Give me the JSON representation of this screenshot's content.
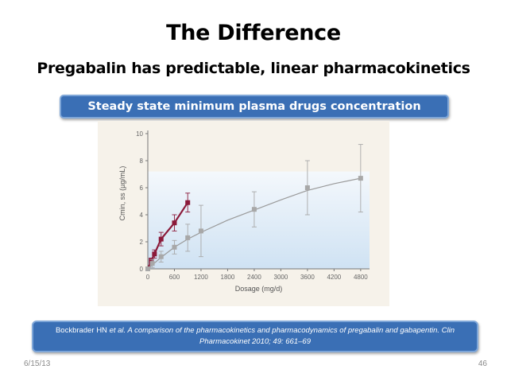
{
  "slide": {
    "title": "The Difference",
    "subtitle": "Pregabalin has predictable, linear pharmacokinetics",
    "banner": "Steady state minimum plasma drugs concentration",
    "reference_authors": "Bockbrader HN ",
    "reference_etal": "et al.",
    "reference_title": " A comparison of the pharmacokinetics and pharmacodynamics of pregabalin and gabapentin. Clin Pharmacokinet 2010; 49: 661–69",
    "date": "6/15/13",
    "page_number": "46"
  },
  "chart_data": {
    "type": "line",
    "xlabel": "Dosage (mg/d)",
    "ylabel": "Cmin, ss (µg/mL)",
    "xlim": [
      0,
      5000
    ],
    "ylim": [
      0,
      10
    ],
    "xticks": [
      0,
      600,
      1200,
      1800,
      2400,
      3000,
      3600,
      4200,
      4800
    ],
    "yticks": [
      0,
      2,
      4,
      6,
      8,
      10
    ],
    "series": [
      {
        "name": "Pregabalin",
        "color": "#8b1a3a",
        "x": [
          0,
          75,
          150,
          300,
          600,
          900
        ],
        "y": [
          0,
          0.6,
          1.1,
          2.2,
          3.4,
          4.9
        ],
        "err": [
          0,
          0.2,
          0.3,
          0.5,
          0.6,
          0.7
        ]
      },
      {
        "name": "Gabapentin",
        "color": "#a8a8a8",
        "x": [
          0,
          100,
          300,
          600,
          900,
          1200,
          2400,
          3600,
          4800
        ],
        "y": [
          0,
          0.4,
          0.9,
          1.6,
          2.3,
          2.8,
          4.4,
          6.0,
          6.7
        ],
        "err": [
          0,
          0.3,
          0.4,
          0.5,
          1.0,
          1.9,
          1.3,
          2.0,
          2.5
        ],
        "fit": [
          [
            0,
            0
          ],
          [
            300,
            0.85
          ],
          [
            600,
            1.6
          ],
          [
            900,
            2.2
          ],
          [
            1200,
            2.7
          ],
          [
            1800,
            3.6
          ],
          [
            2400,
            4.35
          ],
          [
            3000,
            5.1
          ],
          [
            3600,
            5.8
          ],
          [
            4200,
            6.3
          ],
          [
            4800,
            6.7
          ]
        ]
      }
    ]
  }
}
